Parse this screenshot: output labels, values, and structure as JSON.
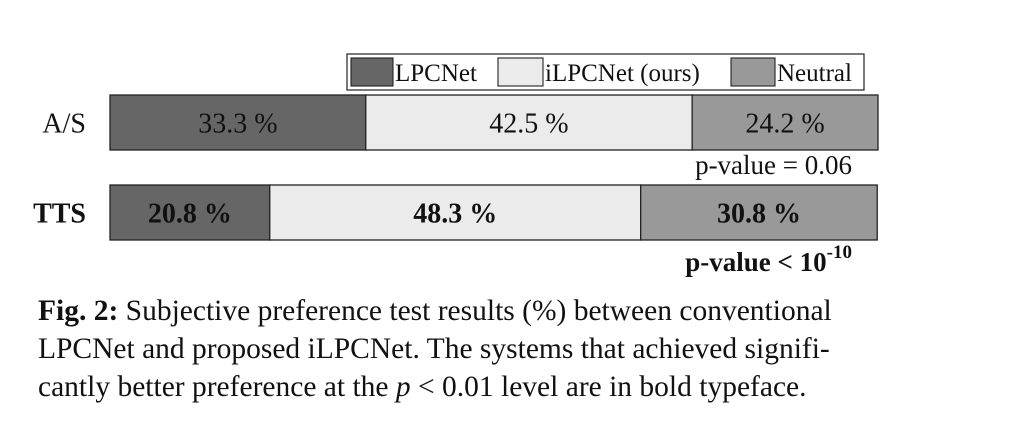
{
  "chart_data": {
    "type": "bar",
    "orientation": "horizontal",
    "stacked": true,
    "normalized": true,
    "categories": [
      "A/S",
      "TTS"
    ],
    "series": [
      {
        "name": "LPCNet",
        "values": [
          33.3,
          20.8
        ],
        "labels": [
          "33.3 %",
          "20.8 %"
        ],
        "color": "#666666"
      },
      {
        "name": "iLPCNet (ours)",
        "values": [
          42.5,
          48.3
        ],
        "labels": [
          "42.5 %",
          "48.3 %"
        ],
        "color": "#ebebeb"
      },
      {
        "name": "Neutral",
        "values": [
          24.2,
          30.8
        ],
        "labels": [
          "24.2 %",
          "30.8 %"
        ],
        "color": "#999999"
      }
    ],
    "bold_rows": [
      false,
      true
    ],
    "xlim": [
      0,
      100
    ],
    "legend_position": "top-right",
    "annotations": [
      {
        "text": "p-value = 0.06",
        "bold": false
      },
      {
        "text": "p-value < 10",
        "exponent": "-10",
        "bold": true
      }
    ],
    "grid": false
  },
  "caption": {
    "label": "Fig. 2:",
    "line1": "Subjective preference test results (%) between conventional",
    "line2": "LPCNet and proposed iLPCNet.  The systems that achieved signifi-",
    "line3_pre": "cantly better preference at the ",
    "p_symbol": "p",
    "relation": " < 0.01 ",
    "line3_post": "level are in bold typeface."
  }
}
